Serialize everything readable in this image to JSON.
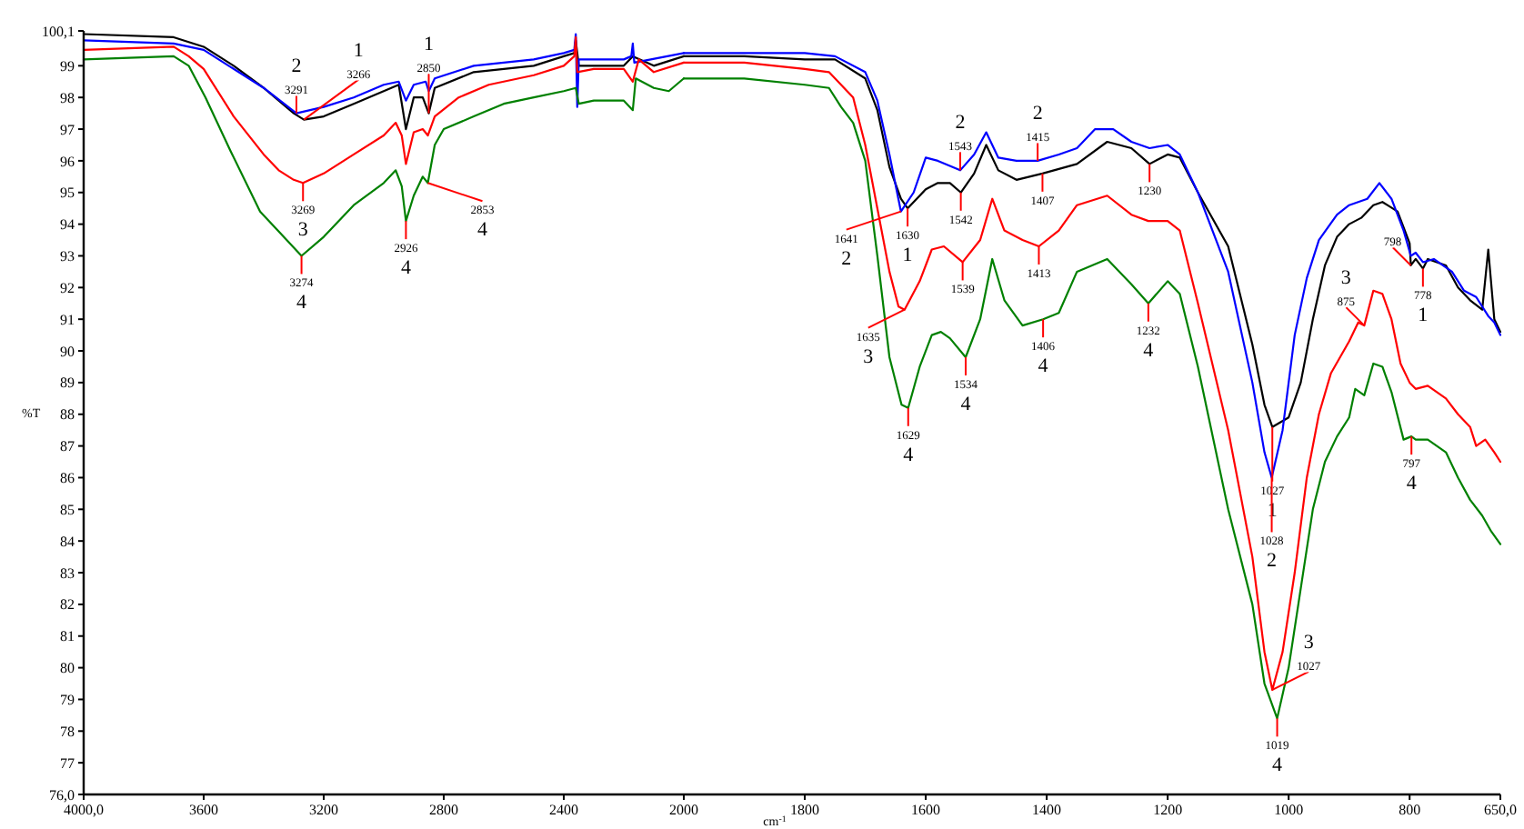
{
  "chart_data": [
    {
      "type": "line",
      "ylabel": "%T",
      "xlim": [
        4000,
        2000
      ],
      "ylim": [
        76,
        100.1
      ],
      "xticks": [
        {
          "value": 4000,
          "label": "4000,0"
        },
        3600,
        3200,
        2800,
        2400,
        2000
      ],
      "yticks": [
        {
          "value": 76,
          "label": "76,0"
        },
        77,
        78,
        79,
        80,
        81,
        82,
        83,
        84,
        85,
        86,
        87,
        88,
        89,
        90,
        91,
        92,
        93,
        94,
        95,
        96,
        97,
        98,
        99,
        {
          "value": 100.1,
          "label": "100,1"
        }
      ],
      "grid": false,
      "marker": "none",
      "line_style": "solid",
      "series": [
        {
          "color": "#000000",
          "x": [
            4000,
            3700,
            3600,
            3500,
            3400,
            3300,
            3266,
            3200,
            3100,
            3000,
            2950,
            2926,
            2900,
            2870,
            2850,
            2830,
            2700,
            2500,
            2400,
            2365,
            2360,
            2350,
            2300,
            2200,
            2170,
            2100,
            2000
          ],
          "values": [
            100.0,
            99.9,
            99.6,
            99.0,
            98.3,
            97.5,
            97.3,
            97.4,
            97.8,
            98.2,
            98.4,
            97.0,
            98.0,
            98.0,
            97.5,
            98.3,
            98.8,
            99.0,
            99.3,
            99.4,
            99.8,
            99.0,
            99.0,
            99.0,
            99.3,
            99.0,
            99.3
          ]
        },
        {
          "color": "#0000ff",
          "x": [
            4000,
            3700,
            3600,
            3400,
            3291,
            3200,
            3100,
            3000,
            2950,
            2926,
            2900,
            2860,
            2850,
            2830,
            2700,
            2500,
            2400,
            2365,
            2360,
            2355,
            2350,
            2300,
            2200,
            2175,
            2170,
            2165,
            2000
          ],
          "values": [
            99.8,
            99.7,
            99.5,
            98.3,
            97.5,
            97.7,
            98.0,
            98.4,
            98.5,
            97.9,
            98.4,
            98.5,
            98.2,
            98.6,
            99.0,
            99.2,
            99.4,
            99.5,
            100.0,
            97.7,
            99.2,
            99.2,
            99.2,
            99.3,
            99.7,
            99.1,
            99.4
          ]
        },
        {
          "color": "#ff0000",
          "x": [
            4000,
            3700,
            3650,
            3600,
            3500,
            3400,
            3350,
            3300,
            3269,
            3200,
            3100,
            3000,
            2960,
            2940,
            2926,
            2900,
            2870,
            2853,
            2830,
            2750,
            2650,
            2500,
            2400,
            2365,
            2360,
            2355,
            2300,
            2200,
            2170,
            2150,
            2100,
            2000
          ],
          "values": [
            99.5,
            99.6,
            99.3,
            98.9,
            97.4,
            96.2,
            95.7,
            95.4,
            95.3,
            95.6,
            96.2,
            96.8,
            97.2,
            96.8,
            95.9,
            96.9,
            97.0,
            96.8,
            97.4,
            98.0,
            98.4,
            98.7,
            99.0,
            99.3,
            99.9,
            98.8,
            98.9,
            98.9,
            98.5,
            99.2,
            98.8,
            99.1
          ]
        },
        {
          "color": "#008000",
          "x": [
            4000,
            3700,
            3650,
            3594,
            3510,
            3412,
            3274,
            3200,
            3100,
            3000,
            2960,
            2940,
            2926,
            2900,
            2870,
            2853,
            2830,
            2800,
            2700,
            2600,
            2500,
            2400,
            2360,
            2350,
            2300,
            2200,
            2170,
            2160,
            2100,
            2050,
            2000
          ],
          "values": [
            99.2,
            99.3,
            99.0,
            98.0,
            96.3,
            94.4,
            93.0,
            93.6,
            94.6,
            95.3,
            95.7,
            95.2,
            94.1,
            94.9,
            95.5,
            95.3,
            96.5,
            97.0,
            97.4,
            97.8,
            98.0,
            98.2,
            98.3,
            97.8,
            97.9,
            97.9,
            97.6,
            98.6,
            98.3,
            98.2,
            98.6
          ]
        }
      ],
      "annotations": [
        {
          "text": "3291",
          "x": 3291,
          "y": 97.5
        },
        {
          "text": "2",
          "x": 3291,
          "y": 97.5
        },
        {
          "text": "3266",
          "x": 3266,
          "y": 97.3
        },
        {
          "text": "1",
          "x": 3266,
          "y": 97.3
        },
        {
          "text": "3269",
          "x": 3269,
          "y": 95.3
        },
        {
          "text": "3",
          "x": 3269,
          "y": 95.3
        },
        {
          "text": "3274",
          "x": 3274,
          "y": 93.0
        },
        {
          "text": "4",
          "x": 3274,
          "y": 93.0
        },
        {
          "text": "2926",
          "x": 2926,
          "y": 94.1
        },
        {
          "text": "4",
          "x": 2926,
          "y": 94.1
        },
        {
          "text": "2850",
          "x": 2850,
          "y": 97.5
        },
        {
          "text": "1",
          "x": 2850,
          "y": 97.5
        },
        {
          "text": "2853",
          "x": 2853,
          "y": 95.3
        },
        {
          "text": "4",
          "x": 2853,
          "y": 95.3
        }
      ]
    },
    {
      "type": "line",
      "xlabel": "cm$^{-1}$",
      "xlim": [
        2000,
        650
      ],
      "ylim": [
        76,
        100.1
      ],
      "xticks": [
        1800,
        1600,
        1400,
        1200,
        1000,
        800,
        {
          "value": 650,
          "label": "650,0"
        }
      ],
      "tick_labels": "x",
      "grid": false,
      "marker": "none",
      "line_style": "solid",
      "series": [
        {
          "color": "#000000",
          "x": [
            2000,
            1900,
            1800,
            1750,
            1700,
            1680,
            1660,
            1641,
            1630,
            1600,
            1580,
            1560,
            1542,
            1520,
            1500,
            1480,
            1450,
            1407,
            1350,
            1300,
            1260,
            1230,
            1200,
            1180,
            1150,
            1100,
            1060,
            1040,
            1027,
            1000,
            980,
            960,
            940,
            920,
            900,
            880,
            860,
            845,
            820,
            800,
            798,
            790,
            778,
            770,
            740,
            720,
            700,
            680,
            670,
            660,
            650
          ],
          "values": [
            99.3,
            99.3,
            99.2,
            99.2,
            98.6,
            97.6,
            95.8,
            94.8,
            94.5,
            95.1,
            95.3,
            95.3,
            95.0,
            95.6,
            96.5,
            95.7,
            95.4,
            95.6,
            95.9,
            96.6,
            96.4,
            95.9,
            96.2,
            96.1,
            95.0,
            93.3,
            90.2,
            88.3,
            87.6,
            87.9,
            89.0,
            91.0,
            92.7,
            93.6,
            94.0,
            94.2,
            94.6,
            94.7,
            94.4,
            93.4,
            92.7,
            92.9,
            92.6,
            92.9,
            92.7,
            92.0,
            91.6,
            91.3,
            93.2,
            91.0,
            90.6
          ]
        },
        {
          "color": "#0000ff",
          "x": [
            2000,
            1800,
            1750,
            1700,
            1680,
            1660,
            1641,
            1620,
            1600,
            1580,
            1543,
            1520,
            1500,
            1480,
            1450,
            1415,
            1380,
            1350,
            1320,
            1290,
            1260,
            1230,
            1200,
            1180,
            1150,
            1100,
            1060,
            1040,
            1028,
            1010,
            990,
            970,
            950,
            920,
            900,
            870,
            850,
            830,
            810,
            798,
            790,
            778,
            760,
            730,
            710,
            690,
            670,
            660,
            650
          ],
          "values": [
            99.4,
            99.4,
            99.3,
            98.8,
            97.9,
            96.2,
            94.4,
            95.0,
            96.1,
            96.0,
            95.7,
            96.2,
            96.9,
            96.1,
            96.0,
            96.0,
            96.2,
            96.4,
            97.0,
            97.0,
            96.6,
            96.4,
            96.5,
            96.2,
            95.0,
            92.5,
            89.0,
            86.8,
            86.0,
            87.5,
            90.5,
            92.3,
            93.5,
            94.3,
            94.6,
            94.8,
            95.3,
            94.8,
            93.8,
            93.0,
            93.1,
            92.8,
            92.9,
            92.5,
            91.9,
            91.7,
            91.1,
            90.9,
            90.5
          ]
        },
        {
          "color": "#ff0000",
          "x": [
            2000,
            1900,
            1800,
            1760,
            1720,
            1700,
            1680,
            1660,
            1645,
            1635,
            1610,
            1590,
            1570,
            1539,
            1510,
            1490,
            1470,
            1440,
            1413,
            1380,
            1350,
            1300,
            1260,
            1232,
            1200,
            1180,
            1150,
            1100,
            1060,
            1040,
            1027,
            1010,
            990,
            970,
            950,
            930,
            900,
            885,
            875,
            860,
            845,
            830,
            815,
            800,
            790,
            770,
            740,
            720,
            700,
            690,
            675,
            660,
            650
          ],
          "values": [
            99.1,
            99.1,
            98.9,
            98.8,
            98.0,
            96.5,
            94.5,
            92.5,
            91.4,
            91.3,
            92.2,
            93.2,
            93.3,
            92.8,
            93.5,
            94.8,
            93.8,
            93.5,
            93.3,
            93.8,
            94.6,
            94.9,
            94.3,
            94.1,
            94.1,
            93.8,
            91.5,
            87.5,
            83.5,
            80.5,
            79.3,
            80.5,
            83.0,
            86.0,
            88.0,
            89.3,
            90.3,
            90.9,
            90.8,
            91.9,
            91.8,
            91.0,
            89.6,
            89.0,
            88.8,
            88.9,
            88.5,
            88.0,
            87.6,
            87.0,
            87.2,
            86.8,
            86.5
          ]
        },
        {
          "color": "#008000",
          "x": [
            2000,
            1900,
            1800,
            1760,
            1740,
            1720,
            1700,
            1680,
            1660,
            1640,
            1629,
            1610,
            1590,
            1575,
            1560,
            1534,
            1510,
            1490,
            1470,
            1440,
            1406,
            1380,
            1350,
            1300,
            1260,
            1232,
            1200,
            1180,
            1150,
            1120,
            1100,
            1060,
            1040,
            1019,
            1000,
            980,
            960,
            940,
            920,
            900,
            890,
            875,
            860,
            845,
            830,
            810,
            797,
            790,
            770,
            740,
            720,
            700,
            680,
            665,
            650
          ],
          "values": [
            98.6,
            98.6,
            98.4,
            98.3,
            97.7,
            97.2,
            96.0,
            93.0,
            89.8,
            88.3,
            88.2,
            89.5,
            90.5,
            90.6,
            90.4,
            89.8,
            91.0,
            92.9,
            91.6,
            90.8,
            91.0,
            91.2,
            92.5,
            92.9,
            92.1,
            91.5,
            92.2,
            91.8,
            89.5,
            86.8,
            85.0,
            82.0,
            79.5,
            78.4,
            80.0,
            82.5,
            85.0,
            86.5,
            87.3,
            87.9,
            88.8,
            88.6,
            89.6,
            89.5,
            88.7,
            87.2,
            87.3,
            87.2,
            87.2,
            86.8,
            86.0,
            85.3,
            84.8,
            84.3,
            83.9
          ]
        }
      ],
      "annotations": [
        {
          "text": "1641",
          "x": 1641,
          "y": 94.4
        },
        {
          "text": "2",
          "x": 1641,
          "y": 94.4
        },
        {
          "text": "1630",
          "x": 1630,
          "y": 94.5
        },
        {
          "text": "1",
          "x": 1630,
          "y": 94.5
        },
        {
          "text": "1635",
          "x": 1635,
          "y": 91.3
        },
        {
          "text": "3",
          "x": 1635,
          "y": 91.3
        },
        {
          "text": "1629",
          "x": 1629,
          "y": 88.2
        },
        {
          "text": "4",
          "x": 1629,
          "y": 88.2
        },
        {
          "text": "1543",
          "x": 1543,
          "y": 95.7
        },
        {
          "text": "2",
          "x": 1543,
          "y": 95.7
        },
        {
          "text": "1542",
          "x": 1542,
          "y": 95.0
        },
        {
          "text": "1539",
          "x": 1539,
          "y": 92.8
        },
        {
          "text": "1534",
          "x": 1534,
          "y": 89.8
        },
        {
          "text": "4",
          "x": 1534,
          "y": 89.8
        },
        {
          "text": "1415",
          "x": 1415,
          "y": 96.0
        },
        {
          "text": "2",
          "x": 1415,
          "y": 96.0
        },
        {
          "text": "1407",
          "x": 1407,
          "y": 95.6
        },
        {
          "text": "1413",
          "x": 1413,
          "y": 93.3
        },
        {
          "text": "1406",
          "x": 1406,
          "y": 91.0
        },
        {
          "text": "4",
          "x": 1406,
          "y": 91.0
        },
        {
          "text": "1230",
          "x": 1230,
          "y": 95.9
        },
        {
          "text": "1232",
          "x": 1232,
          "y": 91.5
        },
        {
          "text": "4",
          "x": 1232,
          "y": 91.5
        },
        {
          "text": "1027",
          "x": 1027,
          "y": 87.6
        },
        {
          "text": "1",
          "x": 1027,
          "y": 87.6
        },
        {
          "text": "1028",
          "x": 1028,
          "y": 86.0
        },
        {
          "text": "2",
          "x": 1028,
          "y": 86.0
        },
        {
          "text": "1027",
          "x": 1027,
          "y": 79.3
        },
        {
          "text": "3",
          "x": 1027,
          "y": 79.3
        },
        {
          "text": "1019",
          "x": 1019,
          "y": 78.4
        },
        {
          "text": "4",
          "x": 1019,
          "y": 78.4
        },
        {
          "text": "875",
          "x": 875,
          "y": 90.8
        },
        {
          "text": "3",
          "x": 875,
          "y": 90.8
        },
        {
          "text": "798",
          "x": 798,
          "y": 92.7
        },
        {
          "text": "778",
          "x": 778,
          "y": 92.6
        },
        {
          "text": "1",
          "x": 778,
          "y": 92.6
        },
        {
          "text": "797",
          "x": 797,
          "y": 87.3
        },
        {
          "text": "4",
          "x": 797,
          "y": 87.3
        }
      ]
    }
  ]
}
